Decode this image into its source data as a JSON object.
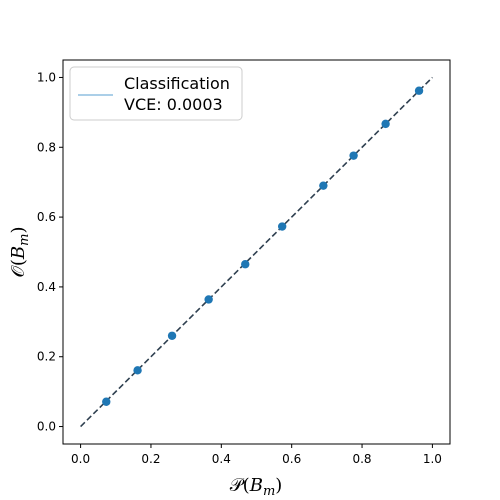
{
  "chart_data": {
    "type": "scatter",
    "xlabel": "𝒫(B_m)",
    "ylabel": "𝒪(B_m)",
    "xlim": [
      -0.05,
      1.05
    ],
    "ylim": [
      -0.05,
      1.05
    ],
    "xticks": [
      "0.0",
      "0.2",
      "0.4",
      "0.6",
      "0.8",
      "1.0"
    ],
    "yticks": [
      "0.0",
      "0.2",
      "0.4",
      "0.6",
      "0.8",
      "1.0"
    ],
    "grid": false,
    "legend": {
      "placement": "top-left",
      "entries": [
        "Classification",
        "VCE: 0.0003"
      ]
    },
    "series": [
      {
        "name": "Classification",
        "color": "#1f77b4",
        "points": [
          {
            "x": 0.073,
            "y": 0.071
          },
          {
            "x": 0.162,
            "y": 0.161
          },
          {
            "x": 0.26,
            "y": 0.26
          },
          {
            "x": 0.364,
            "y": 0.364
          },
          {
            "x": 0.468,
            "y": 0.465
          },
          {
            "x": 0.573,
            "y": 0.573
          },
          {
            "x": 0.69,
            "y": 0.69
          },
          {
            "x": 0.776,
            "y": 0.776
          },
          {
            "x": 0.867,
            "y": 0.867
          },
          {
            "x": 0.962,
            "y": 0.962
          }
        ]
      }
    ],
    "reference_line": {
      "x": [
        0,
        1
      ],
      "y": [
        0,
        1
      ],
      "style": "dashed",
      "color": "#2f4050"
    },
    "legend_line_color": "#8fbfe0"
  }
}
